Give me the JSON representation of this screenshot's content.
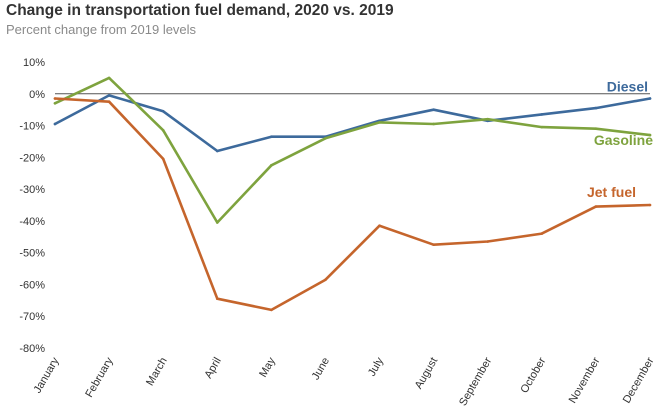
{
  "chart_data": {
    "type": "line",
    "title": "Change in transportation fuel demand, 2020 vs. 2019",
    "subtitle": "Percent change from 2019 levels",
    "xlabel": "",
    "ylabel": "",
    "ylim": [
      -80,
      10
    ],
    "yticks": [
      10,
      0,
      -10,
      -20,
      -30,
      -40,
      -50,
      -60,
      -70,
      -80
    ],
    "ytick_labels": [
      "10%",
      "0%",
      "-10%",
      "-20%",
      "-30%",
      "-40%",
      "-50%",
      "-60%",
      "-70%",
      "-80%"
    ],
    "categories": [
      "January",
      "February",
      "March",
      "April",
      "May",
      "June",
      "July",
      "August",
      "September",
      "October",
      "November",
      "December"
    ],
    "grid": false,
    "zero_line": true,
    "legend": "direct labels at right",
    "series": [
      {
        "name": "Diesel",
        "color": "#3d6a9c",
        "values": [
          -9.5,
          -0.5,
          -5.5,
          -18,
          -13.5,
          -13.5,
          -8.5,
          -5,
          -8.5,
          -6.5,
          -4.5,
          -1.5
        ]
      },
      {
        "name": "Gasoline",
        "color": "#7ea33e",
        "values": [
          -3,
          5,
          -11.5,
          -40.5,
          -22.5,
          -14,
          -9,
          -9.5,
          -8,
          -10.5,
          -11,
          -13
        ]
      },
      {
        "name": "Jet fuel",
        "color": "#c5652c",
        "values": [
          -1.5,
          -2.5,
          -20.5,
          -64.5,
          -68,
          -58.5,
          -41.5,
          -47.5,
          -46.5,
          -44,
          -35.5,
          -35
        ]
      }
    ]
  }
}
